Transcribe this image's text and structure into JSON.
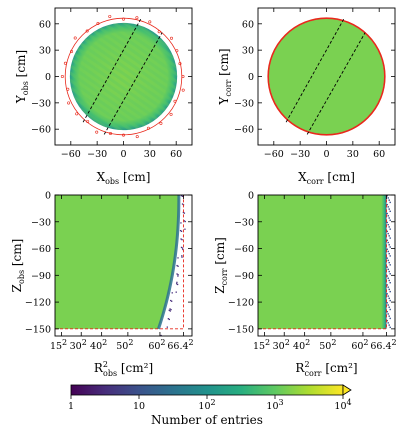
{
  "chart_data": [
    {
      "type": "heatmap",
      "id": "xy-obs",
      "xlabel": "X",
      "xlabel_sub": "obs",
      "xlabel_unit": "[cm]",
      "ylabel": "Y",
      "ylabel_sub": "obs",
      "ylabel_unit": "[cm]",
      "xlim": [
        -78,
        78
      ],
      "ylim": [
        -78,
        78
      ],
      "xticks": [
        -60,
        -30,
        0,
        30,
        60
      ],
      "yticks": [
        -60,
        -30,
        0,
        30,
        60
      ],
      "boundary_radius": 66.4,
      "diagonal_lines": [
        [
          [
            -46,
            -52
          ],
          [
            20,
            66
          ]
        ],
        [
          [
            -22,
            -66
          ],
          [
            44,
            50
          ]
        ]
      ]
    },
    {
      "type": "heatmap",
      "id": "xy-corr",
      "xlabel": "X",
      "xlabel_sub": "corr",
      "xlabel_unit": "[cm]",
      "ylabel": "Y",
      "ylabel_sub": "corr",
      "ylabel_unit": "[cm]",
      "xlim": [
        -78,
        78
      ],
      "ylim": [
        -78,
        78
      ],
      "xticks": [
        -60,
        -30,
        0,
        30,
        60
      ],
      "yticks": [
        -60,
        -30,
        0,
        30,
        60
      ],
      "boundary_radius": 66.4,
      "diagonal_lines": [
        [
          [
            -46,
            -52
          ],
          [
            20,
            66
          ]
        ],
        [
          [
            -22,
            -66
          ],
          [
            44,
            50
          ]
        ]
      ]
    },
    {
      "type": "heatmap",
      "id": "rz-obs",
      "xlabel": "R",
      "xlabel_sub": "obs",
      "xlabel_sup": "2",
      "xlabel_unit": "[cm²]",
      "ylabel": "Z",
      "ylabel_sub": "obs",
      "ylabel_unit": "[cm]",
      "xlim": [
        0,
        4700
      ],
      "ylim": [
        -158,
        0
      ],
      "xticks": [
        {
          "value": 225,
          "base": "15",
          "exp": "2"
        },
        {
          "value": 900,
          "base": "30",
          "exp": "2"
        },
        {
          "value": 1600,
          "base": "40",
          "exp": "2"
        },
        {
          "value": 2500,
          "base": "50",
          "exp": "2"
        },
        {
          "value": 3600,
          "base": "60",
          "exp": "2"
        },
        {
          "value": 4409,
          "base": "66.4",
          "exp": "2"
        }
      ],
      "yticks": [
        0,
        -30,
        -60,
        -90,
        -120,
        -150
      ],
      "boundary": {
        "r2_max": 4409,
        "z_min": -150
      }
    },
    {
      "type": "heatmap",
      "id": "rz-corr",
      "xlabel": "R",
      "xlabel_sub": "corr",
      "xlabel_sup": "2",
      "xlabel_unit": "[cm²]",
      "ylabel": "Z",
      "ylabel_sub": "corr",
      "ylabel_unit": "[cm]",
      "xlim": [
        0,
        4700
      ],
      "ylim": [
        -158,
        0
      ],
      "xticks": [
        {
          "value": 225,
          "base": "15",
          "exp": "2"
        },
        {
          "value": 900,
          "base": "30",
          "exp": "2"
        },
        {
          "value": 1600,
          "base": "40",
          "exp": "2"
        },
        {
          "value": 2500,
          "base": "50",
          "exp": "2"
        },
        {
          "value": 3600,
          "base": "60",
          "exp": "2"
        },
        {
          "value": 4409,
          "base": "66.4",
          "exp": "2"
        }
      ],
      "yticks": [
        0,
        -30,
        -60,
        -90,
        -120,
        -150
      ],
      "boundary": {
        "r2_max": 4409,
        "z_min": -150
      }
    }
  ],
  "colorbar": {
    "label": "Number of entries",
    "scale": "log",
    "range": [
      1,
      10000
    ],
    "ticks": [
      {
        "value": 1,
        "base": "1",
        "exp": ""
      },
      {
        "value": 10,
        "base": "10",
        "exp": ""
      },
      {
        "value": 100,
        "base": "10",
        "exp": "2"
      },
      {
        "value": 1000,
        "base": "10",
        "exp": "3"
      },
      {
        "value": 10000,
        "base": "10",
        "exp": "4"
      }
    ],
    "colors": [
      "#440154",
      "#472d7b",
      "#3b528b",
      "#2c728e",
      "#21918c",
      "#28ae80",
      "#5ec962",
      "#addc30",
      "#fde725"
    ]
  }
}
